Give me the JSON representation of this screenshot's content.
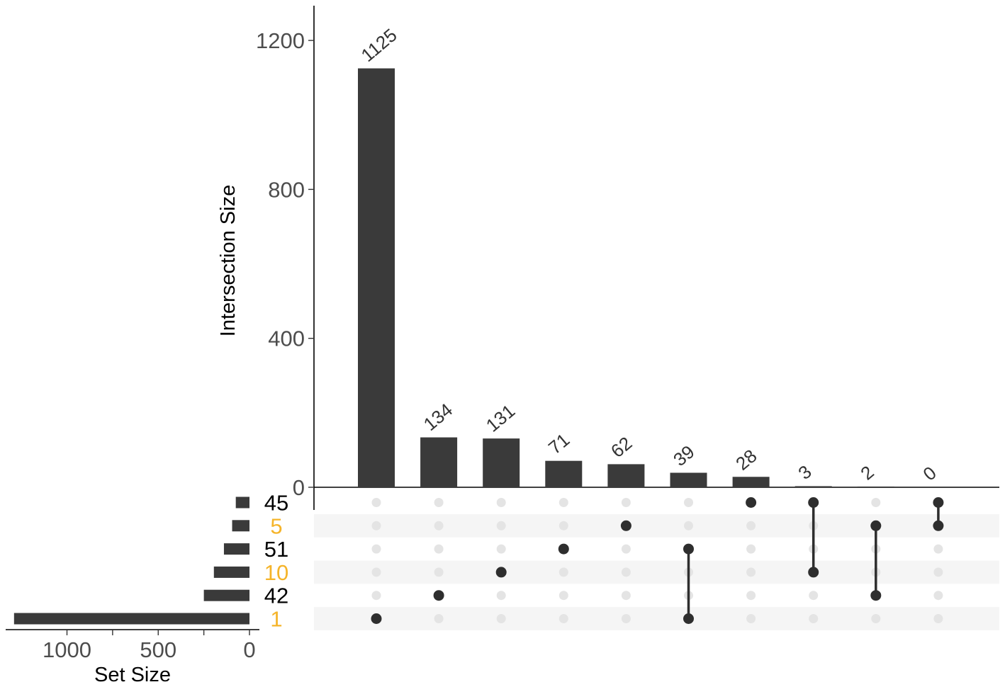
{
  "chart_data": {
    "type": "upset",
    "sets": [
      {
        "name": "45",
        "size": 75,
        "highlight": false
      },
      {
        "name": "5",
        "size": 95,
        "highlight": true
      },
      {
        "name": "51",
        "size": 140,
        "highlight": false
      },
      {
        "name": "10",
        "size": 195,
        "highlight": true
      },
      {
        "name": "42",
        "size": 250,
        "highlight": false
      },
      {
        "name": "1",
        "size": 1290,
        "highlight": true
      }
    ],
    "intersections": [
      {
        "size": 1125,
        "label": "1125",
        "members": [
          "1"
        ]
      },
      {
        "size": 134,
        "label": "134",
        "members": [
          "42"
        ]
      },
      {
        "size": 131,
        "label": "131",
        "members": [
          "10"
        ]
      },
      {
        "size": 71,
        "label": "71",
        "members": [
          "51"
        ]
      },
      {
        "size": 62,
        "label": "62",
        "members": [
          "5"
        ]
      },
      {
        "size": 39,
        "label": "39",
        "members": [
          "51",
          "1"
        ]
      },
      {
        "size": 28,
        "label": "28",
        "members": [
          "45"
        ]
      },
      {
        "size": 3,
        "label": "3",
        "members": [
          "45",
          "10"
        ]
      },
      {
        "size": 2,
        "label": "2",
        "members": [
          "5",
          "42"
        ]
      },
      {
        "size": 0,
        "label": "0",
        "members": [
          "45",
          "5"
        ]
      }
    ],
    "ylabel": "Intersection Size",
    "ylim": [
      0,
      1300
    ],
    "yticks": [
      0,
      400,
      800,
      1200
    ],
    "xlabel_sets": "Set Size",
    "set_xticks": [
      1000,
      500,
      0
    ],
    "set_xlim": [
      1350,
      0
    ],
    "colors": {
      "bar": "#3a3a3a",
      "dot_active": "#2e2e2e",
      "dot_inactive": "#e4e4e4",
      "stripe": "#f5f5f5",
      "highlight_text": "#f5b42a",
      "text": "#000000",
      "tick_text": "#4d4d4d"
    }
  }
}
